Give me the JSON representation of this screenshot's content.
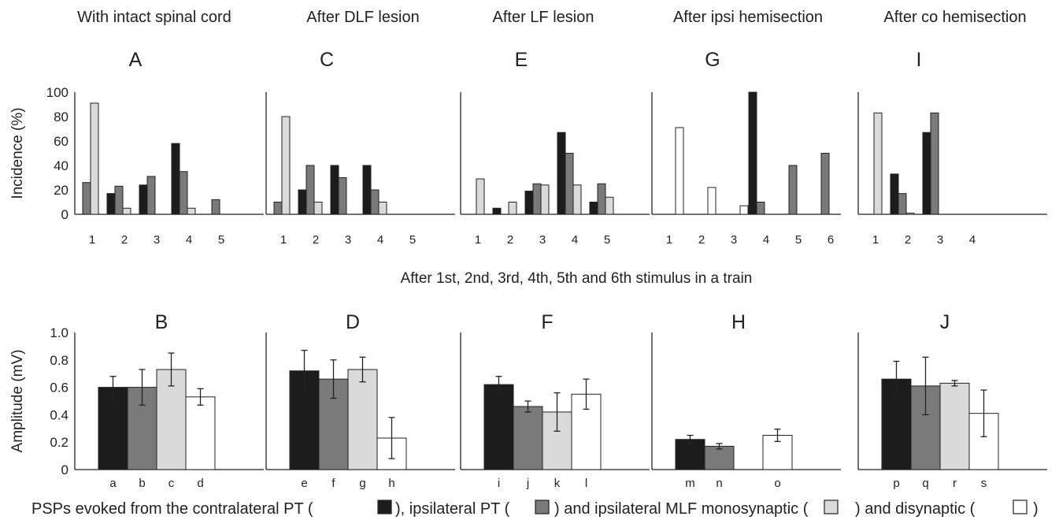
{
  "colors": {
    "contra_pt": "#1c1c1c",
    "ipsi_pt": "#7a7a7a",
    "mlf_mono": "#dadada",
    "disynaptic": "#ffffff"
  },
  "figure": {
    "middle_caption": "After 1st, 2nd, 3rd, 4th, 5th and 6th stimulus in a train",
    "bottom_caption": {
      "part1": "PSPs evoked from the contralateral PT (",
      "part2": "), ipsilateral PT (",
      "part3": ") and ipsilateral MLF monosynaptic (",
      "part4": ") and disynaptic (",
      "part5": ")"
    }
  },
  "column_titles": [
    "With intact spinal cord",
    "After DLF lesion",
    "After LF lesion",
    "After ipsi hemisection",
    "After co hemisection"
  ],
  "chart_data": [
    {
      "panel": "A",
      "type": "bar",
      "ylabel": "Incidence (%)",
      "ylim": [
        0,
        100
      ],
      "yticks": [
        "0",
        "20",
        "40",
        "60",
        "80",
        "100"
      ],
      "categories": [
        "1",
        "2",
        "3",
        "4",
        "5"
      ],
      "series": [
        {
          "values": [
            0,
            17,
            24,
            58,
            0
          ]
        },
        {
          "values": [
            26,
            23,
            31,
            35,
            12
          ]
        },
        {
          "values": [
            91,
            5,
            0,
            5,
            0
          ]
        },
        {
          "values": [
            0,
            0,
            0,
            0,
            0
          ]
        }
      ]
    },
    {
      "panel": "C",
      "type": "bar",
      "ylim": [
        0,
        100
      ],
      "categories": [
        "1",
        "2",
        "3",
        "4",
        "5"
      ],
      "series": [
        {
          "values": [
            0,
            20,
            40,
            40,
            0
          ]
        },
        {
          "values": [
            10,
            40,
            30,
            20,
            0
          ]
        },
        {
          "values": [
            80,
            10,
            0,
            10,
            0
          ]
        },
        {
          "values": [
            0,
            0,
            0,
            0,
            0
          ]
        }
      ]
    },
    {
      "panel": "E",
      "type": "bar",
      "ylim": [
        0,
        100
      ],
      "categories": [
        "1",
        "2",
        "3",
        "4",
        "5"
      ],
      "series": [
        {
          "values": [
            0,
            5,
            19,
            67,
            10
          ]
        },
        {
          "values": [
            0,
            0,
            25,
            50,
            25
          ]
        },
        {
          "values": [
            29,
            10,
            24,
            24,
            14
          ]
        },
        {
          "values": [
            0,
            0,
            0,
            0,
            0
          ]
        }
      ]
    },
    {
      "panel": "G",
      "type": "bar",
      "ylim": [
        0,
        100
      ],
      "categories": [
        "1",
        "2",
        "3",
        "4",
        "5",
        "6"
      ],
      "series": [
        {
          "values": [
            0,
            0,
            0,
            100,
            0,
            0
          ]
        },
        {
          "values": [
            0,
            0,
            0,
            10,
            40,
            50
          ]
        },
        {
          "values": [
            0,
            0,
            0,
            0,
            0,
            0
          ]
        },
        {
          "values": [
            71,
            22,
            7,
            0,
            0,
            0
          ]
        }
      ]
    },
    {
      "panel": "I",
      "type": "bar",
      "ylim": [
        0,
        100
      ],
      "categories": [
        "1",
        "2",
        "3",
        "4"
      ],
      "series": [
        {
          "values": [
            0,
            33,
            67,
            0
          ]
        },
        {
          "values": [
            0,
            17,
            83,
            0
          ]
        },
        {
          "values": [
            83,
            1,
            0,
            0
          ]
        },
        {
          "values": [
            0,
            0,
            0,
            0
          ]
        }
      ]
    },
    {
      "panel": "B",
      "type": "bar",
      "ylabel": "Amplitude (mV)",
      "ylim": [
        0,
        1.0
      ],
      "yticks": [
        "0",
        "0.2",
        "0.4",
        "0.6",
        "0.8",
        "1.0"
      ],
      "categories": [
        "a",
        "b",
        "c",
        "d"
      ],
      "values": [
        0.6,
        0.6,
        0.73,
        0.53
      ],
      "errors": [
        0.08,
        0.13,
        0.12,
        0.06
      ],
      "series_index": [
        0,
        1,
        2,
        3
      ]
    },
    {
      "panel": "D",
      "type": "bar",
      "ylim": [
        0,
        1.0
      ],
      "categories": [
        "e",
        "f",
        "g",
        "h"
      ],
      "values": [
        0.72,
        0.66,
        0.73,
        0.23
      ],
      "errors": [
        0.15,
        0.14,
        0.09,
        0.15
      ],
      "series_index": [
        0,
        1,
        2,
        3
      ]
    },
    {
      "panel": "F",
      "type": "bar",
      "ylim": [
        0,
        1.0
      ],
      "categories": [
        "i",
        "j",
        "k",
        "l"
      ],
      "values": [
        0.62,
        0.46,
        0.42,
        0.55
      ],
      "errors": [
        0.06,
        0.04,
        0.14,
        0.11
      ],
      "series_index": [
        0,
        1,
        2,
        3
      ]
    },
    {
      "panel": "H",
      "type": "bar",
      "ylim": [
        0,
        1.0
      ],
      "categories": [
        "m",
        "n",
        "o"
      ],
      "values": [
        0.22,
        0.17,
        0.25
      ],
      "errors": [
        0.03,
        0.02,
        0.045
      ],
      "series_index": [
        0,
        1,
        3
      ]
    },
    {
      "panel": "J",
      "type": "bar",
      "ylim": [
        0,
        1.0
      ],
      "categories": [
        "p",
        "q",
        "r",
        "s"
      ],
      "values": [
        0.66,
        0.61,
        0.63,
        0.41
      ],
      "errors": [
        0.13,
        0.21,
        0.02,
        0.17
      ],
      "series_index": [
        0,
        1,
        2,
        3
      ]
    }
  ]
}
